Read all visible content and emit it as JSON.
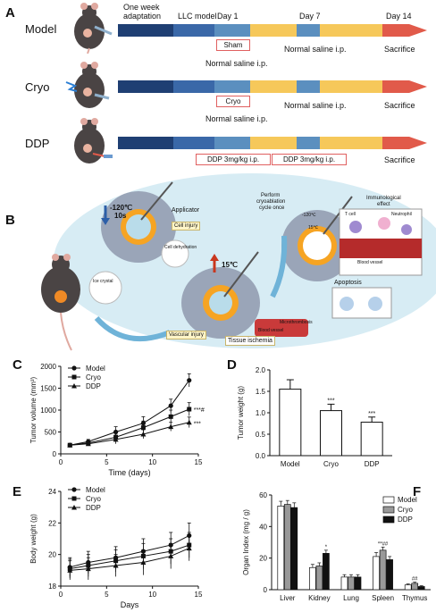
{
  "panel_a": {
    "label": "A",
    "timeline_top": [
      "One week",
      "adaptation",
      "LLC model",
      "Day 1",
      "Day 7",
      "Day 14"
    ],
    "groups": [
      {
        "name": "Model",
        "box": "Sham",
        "day1_text": "Normal saline  i.p.",
        "day7_text": "Normal saline  i.p.",
        "end": "Sacrifice"
      },
      {
        "name": "Cryo",
        "box": "Cryo",
        "day1_text": "Normal saline  i.p.",
        "day7_text": "Normal saline  i.p.",
        "end": "Sacrifice"
      },
      {
        "name": "DDP",
        "box1": "DDP 3mg/kg  i.p.",
        "box2": "DDP 3mg/kg  i.p.",
        "end": "Sacrifice"
      }
    ],
    "colors": {
      "adaptation": "#1f3f73",
      "llc": "#3a68a8",
      "day1": "#5b8fbf",
      "treat": "#f6c85a",
      "sac": "#e15a4a"
    }
  },
  "panel_b": {
    "label": "B",
    "temp_cold": "-120℃",
    "time": "10s",
    "applicator": "Applicator",
    "cell_injury": "Cell injury",
    "cell_dehydration": "Cell dehydration",
    "ice_crystal": "Ice crystal",
    "temp_warm": "15℃",
    "vascular_injury": "Vascular injury",
    "tissue_ischemia": "Tissue ischemia",
    "blood_vessel": "Blood vessel",
    "microthrombosis": "Microthrombosis",
    "perform": "Perform",
    "cryoablation": "cryoablation",
    "cycle_once": "cycle once",
    "small_cold": "-120℃",
    "small_warm": "15℃",
    "immunological": "Immunological",
    "effect": "effect",
    "t_cell": "T cell",
    "neutrophil": "Neutrophil",
    "blood_vessel2": "Blood vessel",
    "apoptosis": "Apoptosis"
  },
  "panel_c": {
    "label": "C",
    "chart_data": {
      "type": "line",
      "xlabel": "Time  (days)",
      "ylabel": "Tumor volume (mm³)",
      "x": [
        1,
        3,
        6,
        9,
        12,
        14
      ],
      "xticks": [
        0,
        5,
        10,
        15
      ],
      "yticks": [
        0,
        500,
        1000,
        1500,
        2000
      ],
      "ylim": [
        0,
        2000
      ],
      "xlim": [
        0,
        15
      ],
      "series": [
        {
          "name": "Model",
          "values": [
            200,
            280,
            500,
            700,
            1100,
            1680
          ],
          "errors": [
            20,
            50,
            120,
            150,
            150,
            150
          ],
          "marker": "circle"
        },
        {
          "name": "Cryo",
          "values": [
            200,
            250,
            380,
            600,
            850,
            1020
          ],
          "errors": [
            20,
            40,
            100,
            150,
            150,
            150
          ],
          "marker": "square"
        },
        {
          "name": "DDP",
          "values": [
            200,
            230,
            330,
            450,
            620,
            720
          ],
          "errors": [
            20,
            40,
            100,
            100,
            100,
            120
          ],
          "marker": "triangle"
        }
      ],
      "annotations": [
        "***#",
        "***"
      ]
    }
  },
  "panel_d": {
    "label": "D",
    "chart_data": {
      "type": "bar",
      "ylabel": "Tumor weight  (g)",
      "categories": [
        "Model",
        "Cryo",
        "DDP"
      ],
      "values": [
        1.55,
        1.05,
        0.78
      ],
      "errors": [
        0.22,
        0.15,
        0.12
      ],
      "ylim": [
        0,
        2.0
      ],
      "yticks": [
        0.0,
        0.5,
        1.0,
        1.5,
        2.0
      ],
      "annotations": [
        "",
        "***",
        "***"
      ]
    }
  },
  "panel_e": {
    "label": "E",
    "chart_data": {
      "type": "line",
      "xlabel": "Days",
      "ylabel": "Body weight  (g)",
      "x": [
        1,
        3,
        6,
        9,
        12,
        14
      ],
      "xticks": [
        0,
        5,
        10,
        15
      ],
      "yticks": [
        18,
        20,
        22,
        24
      ],
      "ylim": [
        18,
        24
      ],
      "xlim": [
        0,
        15
      ],
      "series": [
        {
          "name": "Model",
          "values": [
            19.2,
            19.5,
            19.8,
            20.2,
            20.6,
            21.2
          ],
          "errors": [
            0.6,
            0.7,
            0.7,
            0.8,
            0.8,
            0.8
          ],
          "marker": "circle"
        },
        {
          "name": "Cryo",
          "values": [
            19.1,
            19.3,
            19.6,
            19.9,
            20.2,
            20.6
          ],
          "errors": [
            0.6,
            0.7,
            0.7,
            0.8,
            0.8,
            0.8
          ],
          "marker": "square"
        },
        {
          "name": "DDP",
          "values": [
            19.0,
            19.1,
            19.3,
            19.5,
            19.9,
            20.4
          ],
          "errors": [
            0.6,
            0.7,
            0.7,
            0.8,
            0.8,
            0.8
          ],
          "marker": "triangle"
        }
      ]
    }
  },
  "panel_f": {
    "label": "F",
    "chart_data": {
      "type": "bar",
      "ylabel": "Organ Index  (mg / g)",
      "categories": [
        "Liver",
        "Kidney",
        "Lung",
        "Spleen",
        "Thymus"
      ],
      "ylim": [
        0,
        60
      ],
      "yticks": [
        0,
        20,
        40,
        60
      ],
      "series": [
        {
          "name": "Model",
          "color": "#ffffff",
          "values": [
            53,
            14,
            8,
            21,
            3
          ],
          "errors": [
            3,
            2,
            1.5,
            2.5,
            0.6
          ]
        },
        {
          "name": "Cryo",
          "color": "#999999",
          "values": [
            54,
            15,
            8,
            25,
            4
          ],
          "errors": [
            2.5,
            2,
            1.5,
            2,
            0.8
          ]
        },
        {
          "name": "DDP",
          "color": "#111111",
          "values": [
            52,
            23,
            8,
            19,
            2
          ],
          "errors": [
            3,
            2,
            1.5,
            2,
            0.5
          ]
        }
      ],
      "annotations": [
        {
          "category": "Kidney",
          "series": "DDP",
          "text": "*"
        },
        {
          "category": "Spleen",
          "series": "Cryo",
          "text": "**##"
        },
        {
          "category": "Thymus",
          "series": "Cryo",
          "text": "##"
        }
      ]
    }
  }
}
